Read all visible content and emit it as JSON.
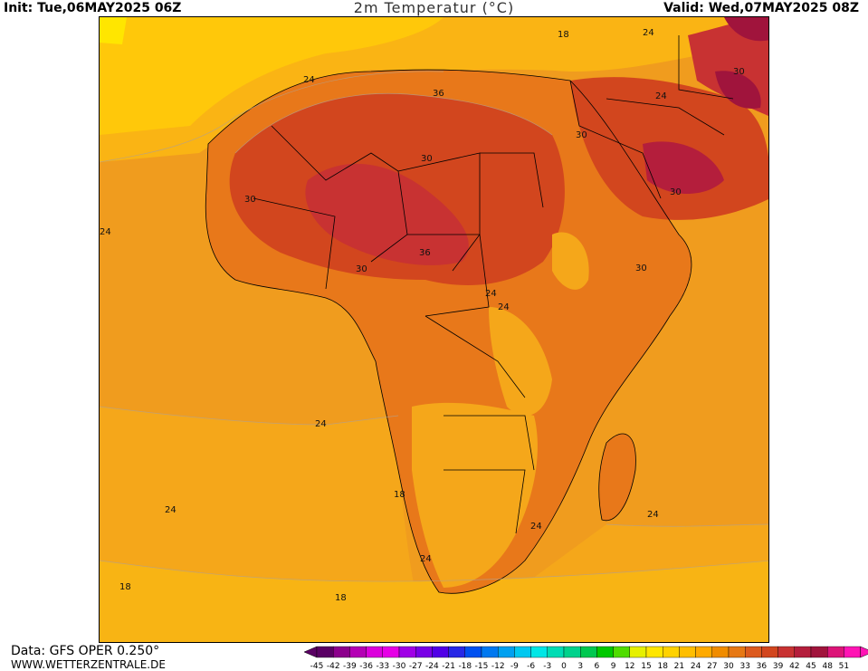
{
  "header": {
    "init": "Init: Tue,06MAY2025 06Z",
    "title": "2m Temperatur (°C)",
    "valid": "Valid: Wed,07MAY2025 08Z"
  },
  "footer": {
    "data_source": "Data: GFS OPER 0.250°",
    "site": "WWW.WETTERZENTRALE.DE"
  },
  "contour_labels": [
    "18",
    "24",
    "24",
    "24",
    "36",
    "30",
    "30",
    "30",
    "36",
    "30",
    "30",
    "30",
    "30",
    "24",
    "24",
    "24",
    "24",
    "18",
    "24",
    "24",
    "24",
    "24",
    "18",
    "18"
  ],
  "legend": {
    "ticks": [
      "-45",
      "-42",
      "-39",
      "-36",
      "-33",
      "-30",
      "-27",
      "-24",
      "-21",
      "-18",
      "-15",
      "-12",
      "-9",
      "-6",
      "-3",
      "0",
      "3",
      "6",
      "9",
      "12",
      "15",
      "18",
      "21",
      "24",
      "27",
      "30",
      "33",
      "36",
      "39",
      "42",
      "45",
      "48",
      "51"
    ],
    "colors": [
      "#5a0064",
      "#8c008c",
      "#b400b4",
      "#dc00dc",
      "#e600e6",
      "#a000e6",
      "#7800e6",
      "#5000e6",
      "#2828e6",
      "#0050f0",
      "#0078f0",
      "#00a0f0",
      "#00c8f0",
      "#00e6e6",
      "#00dcb4",
      "#00d28c",
      "#00c850",
      "#00c800",
      "#50dc00",
      "#e6f000",
      "#ffe600",
      "#ffd200",
      "#ffbe00",
      "#ffaa00",
      "#f08c00",
      "#e67814",
      "#dc5a1e",
      "#d2461e",
      "#c83232",
      "#b41e3c",
      "#a0143c",
      "#dc1478",
      "#ff14b4"
    ]
  }
}
